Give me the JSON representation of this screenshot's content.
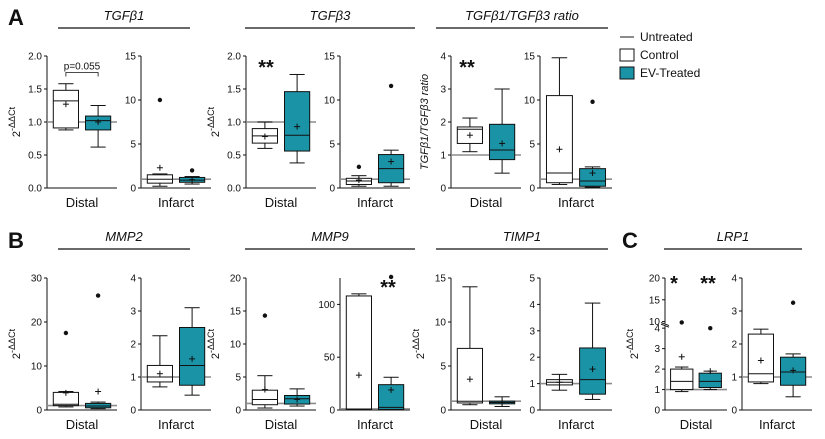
{
  "colors": {
    "control": "#ffffff",
    "ev_treated": "#1a93a6",
    "untreated": "#8c8c8c",
    "ink": "#111111"
  },
  "legend": {
    "position": "top-right",
    "entries": [
      {
        "key": "untreated",
        "label": "Untreated",
        "style": "line"
      },
      {
        "key": "control",
        "label": "Control",
        "style": "box"
      },
      {
        "key": "ev",
        "label": "EV-Treated",
        "style": "box"
      }
    ]
  },
  "chart_data": [
    {
      "type": "box",
      "panel_label": "A",
      "group_title": "TGFβ1",
      "xlabel": "Distal",
      "ylabel": "2-ΔΔCt",
      "ylim": [
        0,
        2.0
      ],
      "yticks": [
        "0.0",
        "0.5",
        "1.0",
        "1.5",
        "2.0"
      ],
      "reference_line": 1,
      "significance": "",
      "pvalue": {
        "text": "p=0.055",
        "height": 1.75
      },
      "series": [
        {
          "name": "Control",
          "q1": 0.91,
          "median": 1.32,
          "q3": 1.48,
          "whisker_low": 0.88,
          "whisker_high": 1.58,
          "mean": 1.27,
          "outliers": []
        },
        {
          "name": "EV-Treated",
          "q1": 0.88,
          "median": 1.02,
          "q3": 1.09,
          "whisker_low": 0.62,
          "whisker_high": 1.25,
          "mean": 1.0,
          "outliers": []
        }
      ]
    },
    {
      "type": "box",
      "panel_label": "",
      "group_title": "TGFβ1",
      "xlabel": "Infarct",
      "ylabel": "",
      "ylim": [
        0,
        15
      ],
      "yticks": [
        "0",
        "5",
        "10",
        "15"
      ],
      "reference_line": 1,
      "significance": "",
      "series": [
        {
          "name": "Control",
          "q1": 0.55,
          "median": 1.0,
          "q3": 1.5,
          "whisker_low": 0.2,
          "whisker_high": 1.6,
          "mean": 2.3,
          "outliers": [
            10.0
          ]
        },
        {
          "name": "EV-Treated",
          "q1": 0.65,
          "median": 0.9,
          "q3": 1.2,
          "whisker_low": 0.45,
          "whisker_high": 1.3,
          "mean": 0.95,
          "outliers": [
            2.0
          ]
        }
      ]
    },
    {
      "type": "box",
      "panel_label": "",
      "group_title": "TGFβ3",
      "xlabel": "Distal",
      "ylabel": "2-ΔΔCt",
      "ylim": [
        0,
        2.0
      ],
      "yticks": [
        "0.0",
        "0.5",
        "1.0",
        "1.5",
        "2.0"
      ],
      "reference_line": 1,
      "significance": "**",
      "series": [
        {
          "name": "Control",
          "q1": 0.68,
          "median": 0.79,
          "q3": 0.9,
          "whisker_low": 0.6,
          "whisker_high": 1.0,
          "mean": 0.78,
          "outliers": []
        },
        {
          "name": "EV-Treated",
          "q1": 0.56,
          "median": 0.8,
          "q3": 1.46,
          "whisker_low": 0.38,
          "whisker_high": 1.72,
          "mean": 0.93,
          "outliers": []
        }
      ]
    },
    {
      "type": "box",
      "panel_label": "",
      "group_title": "TGFβ3",
      "xlabel": "Infarct",
      "ylabel": "",
      "ylim": [
        0,
        15
      ],
      "yticks": [
        "0",
        "5",
        "10",
        "15"
      ],
      "reference_line": 1,
      "significance": "",
      "series": [
        {
          "name": "Control",
          "q1": 0.4,
          "median": 0.8,
          "q3": 1.1,
          "whisker_low": 0.2,
          "whisker_high": 1.4,
          "mean": 0.9,
          "outliers": [
            2.4
          ]
        },
        {
          "name": "EV-Treated",
          "q1": 0.6,
          "median": 2.2,
          "q3": 3.8,
          "whisker_low": 0.2,
          "whisker_high": 4.3,
          "mean": 3.0,
          "outliers": [
            11.6
          ]
        }
      ]
    },
    {
      "type": "box",
      "panel_label": "",
      "group_title": "TGFβ1/TGFβ3 ratio",
      "xlabel": "Distal",
      "ylabel": "TGFβ1/TGFβ3 ratio",
      "ylim": [
        0,
        4
      ],
      "yticks": [
        "0",
        "1",
        "2",
        "3",
        "4"
      ],
      "reference_line": 1,
      "significance": "**",
      "series": [
        {
          "name": "Control",
          "q1": 1.35,
          "median": 1.78,
          "q3": 1.85,
          "whisker_low": 1.1,
          "whisker_high": 2.12,
          "mean": 1.6,
          "outliers": []
        },
        {
          "name": "EV-Treated",
          "q1": 0.86,
          "median": 1.15,
          "q3": 1.93,
          "whisker_low": 0.45,
          "whisker_high": 3.0,
          "mean": 1.35,
          "outliers": []
        }
      ]
    },
    {
      "type": "box",
      "panel_label": "",
      "group_title": "TGFβ1/TGFβ3 ratio",
      "xlabel": "Infarct",
      "ylabel": "",
      "ylim": [
        0,
        15
      ],
      "yticks": [
        "0",
        "5",
        "10",
        "15"
      ],
      "reference_line": 1,
      "significance": "",
      "series": [
        {
          "name": "Control",
          "q1": 0.6,
          "median": 1.7,
          "q3": 10.5,
          "whisker_low": 0.4,
          "whisker_high": 14.8,
          "mean": 4.4,
          "outliers": []
        },
        {
          "name": "EV-Treated",
          "q1": 0.2,
          "median": 0.8,
          "q3": 2.2,
          "whisker_low": 0.1,
          "whisker_high": 2.4,
          "mean": 1.7,
          "outliers": [
            9.8
          ]
        }
      ]
    },
    {
      "type": "box",
      "panel_label": "B",
      "group_title": "MMP2",
      "xlabel": "Distal",
      "ylabel": "2-ΔΔCt",
      "ylim": [
        0,
        30
      ],
      "yticks": [
        "0",
        "10",
        "20",
        "30"
      ],
      "reference_line": 1,
      "significance": "",
      "series": [
        {
          "name": "Control",
          "q1": 1.0,
          "median": 1.3,
          "q3": 4.0,
          "whisker_low": 0.7,
          "whisker_high": 4.2,
          "mean": 3.9,
          "outliers": [
            17.5
          ]
        },
        {
          "name": "EV-Treated",
          "q1": 0.5,
          "median": 0.9,
          "q3": 1.5,
          "whisker_low": 0.3,
          "whisker_high": 1.8,
          "mean": 4.2,
          "outliers": [
            26.0
          ]
        }
      ]
    },
    {
      "type": "box",
      "panel_label": "",
      "group_title": "MMP2",
      "xlabel": "Infarct",
      "ylabel": "",
      "ylim": [
        0,
        4
      ],
      "yticks": [
        "0",
        "1",
        "2",
        "3",
        "4"
      ],
      "reference_line": 1,
      "significance": "",
      "series": [
        {
          "name": "Control",
          "q1": 0.85,
          "median": 1.0,
          "q3": 1.35,
          "whisker_low": 0.7,
          "whisker_high": 2.25,
          "mean": 1.1,
          "outliers": []
        },
        {
          "name": "EV-Treated",
          "q1": 0.75,
          "median": 1.35,
          "q3": 2.5,
          "whisker_low": 0.45,
          "whisker_high": 3.1,
          "mean": 1.55,
          "outliers": []
        }
      ]
    },
    {
      "type": "box",
      "panel_label": "",
      "group_title": "MMP9",
      "xlabel": "Distal",
      "ylabel": "2-ΔΔCt",
      "ylim": [
        0,
        20
      ],
      "yticks": [
        "0",
        "5",
        "10",
        "15",
        "20"
      ],
      "reference_line": 1,
      "significance": "",
      "series": [
        {
          "name": "Control",
          "q1": 0.8,
          "median": 1.6,
          "q3": 3.0,
          "whisker_low": 0.3,
          "whisker_high": 5.2,
          "mean": 3.1,
          "outliers": [
            14.3
          ]
        },
        {
          "name": "EV-Treated",
          "q1": 0.9,
          "median": 1.7,
          "q3": 2.2,
          "whisker_low": 0.6,
          "whisker_high": 3.2,
          "mean": 1.6,
          "outliers": []
        }
      ]
    },
    {
      "type": "box",
      "panel_label": "",
      "group_title": "MMP9",
      "xlabel": "Infarct",
      "ylabel": "",
      "ylim": [
        0,
        125
      ],
      "yticks": [
        "0",
        "50",
        "100"
      ],
      "reference_line": 1,
      "significance": "**",
      "series": [
        {
          "name": "Control",
          "q1": 0.5,
          "median": 1.0,
          "q3": 108,
          "whisker_low": 0.3,
          "whisker_high": 110,
          "mean": 33,
          "outliers": []
        },
        {
          "name": "EV-Treated",
          "q1": 0.5,
          "median": 2.5,
          "q3": 24,
          "whisker_low": 0.3,
          "whisker_high": 31,
          "mean": 19,
          "outliers": [
            126
          ]
        }
      ]
    },
    {
      "type": "box",
      "panel_label": "",
      "group_title": "TIMP1",
      "xlabel": "Distal",
      "ylabel": "2-ΔΔCt",
      "ylim": [
        0,
        15
      ],
      "yticks": [
        "0",
        "5",
        "10",
        "15"
      ],
      "reference_line": 1,
      "significance": "",
      "series": [
        {
          "name": "Control",
          "q1": 0.8,
          "median": 1.0,
          "q3": 7.0,
          "whisker_low": 0.6,
          "whisker_high": 14.0,
          "mean": 3.5,
          "outliers": []
        },
        {
          "name": "EV-Treated",
          "q1": 0.7,
          "median": 0.85,
          "q3": 1.0,
          "whisker_low": 0.4,
          "whisker_high": 1.5,
          "mean": 0.85,
          "outliers": []
        }
      ]
    },
    {
      "type": "box",
      "panel_label": "",
      "group_title": "TIMP1",
      "xlabel": "Infarct",
      "ylabel": "",
      "ylim": [
        0,
        5
      ],
      "yticks": [
        "0",
        "1",
        "2",
        "3",
        "4",
        "5"
      ],
      "reference_line": 1,
      "significance": "",
      "series": [
        {
          "name": "Control",
          "q1": 0.95,
          "median": 1.05,
          "q3": 1.15,
          "whisker_low": 0.75,
          "whisker_high": 1.35,
          "mean": 1.05,
          "outliers": []
        },
        {
          "name": "EV-Treated",
          "q1": 0.6,
          "median": 1.15,
          "q3": 2.35,
          "whisker_low": 0.4,
          "whisker_high": 4.05,
          "mean": 1.55,
          "outliers": []
        }
      ]
    },
    {
      "type": "box",
      "panel_label": "C",
      "group_title": "LRP1",
      "xlabel": "Distal",
      "ylabel": "2-ΔΔCt",
      "ylim": [
        0,
        20
      ],
      "yticks": [
        "0",
        "1",
        "2",
        "3",
        "4",
        "10",
        "15",
        "20"
      ],
      "axis_break": "broken y-axis between 4 and 10",
      "reference_line": 1,
      "significance": "* / **",
      "series": [
        {
          "name": "Control",
          "q1": 1.0,
          "median": 1.4,
          "q3": 2.0,
          "whisker_low": 0.9,
          "whisker_high": 2.1,
          "mean": 2.6,
          "outliers": [
            9.8
          ]
        },
        {
          "name": "EV-Treated",
          "q1": 1.1,
          "median": 1.4,
          "q3": 1.8,
          "whisker_low": 1.0,
          "whisker_high": 1.9,
          "mean": 1.9,
          "outliers": [
            4.0
          ]
        }
      ]
    },
    {
      "type": "box",
      "panel_label": "",
      "group_title": "LRP1",
      "xlabel": "Infarct",
      "ylabel": "",
      "ylim": [
        0,
        4
      ],
      "yticks": [
        "0",
        "1",
        "2",
        "3",
        "4"
      ],
      "reference_line": 1,
      "significance": "",
      "series": [
        {
          "name": "Control",
          "q1": 0.85,
          "median": 1.1,
          "q3": 2.3,
          "whisker_low": 0.8,
          "whisker_high": 2.45,
          "mean": 1.5,
          "outliers": []
        },
        {
          "name": "EV-Treated",
          "q1": 0.75,
          "median": 1.15,
          "q3": 1.6,
          "whisker_low": 0.4,
          "whisker_high": 1.7,
          "mean": 1.2,
          "outliers": [
            3.25
          ]
        }
      ]
    }
  ]
}
